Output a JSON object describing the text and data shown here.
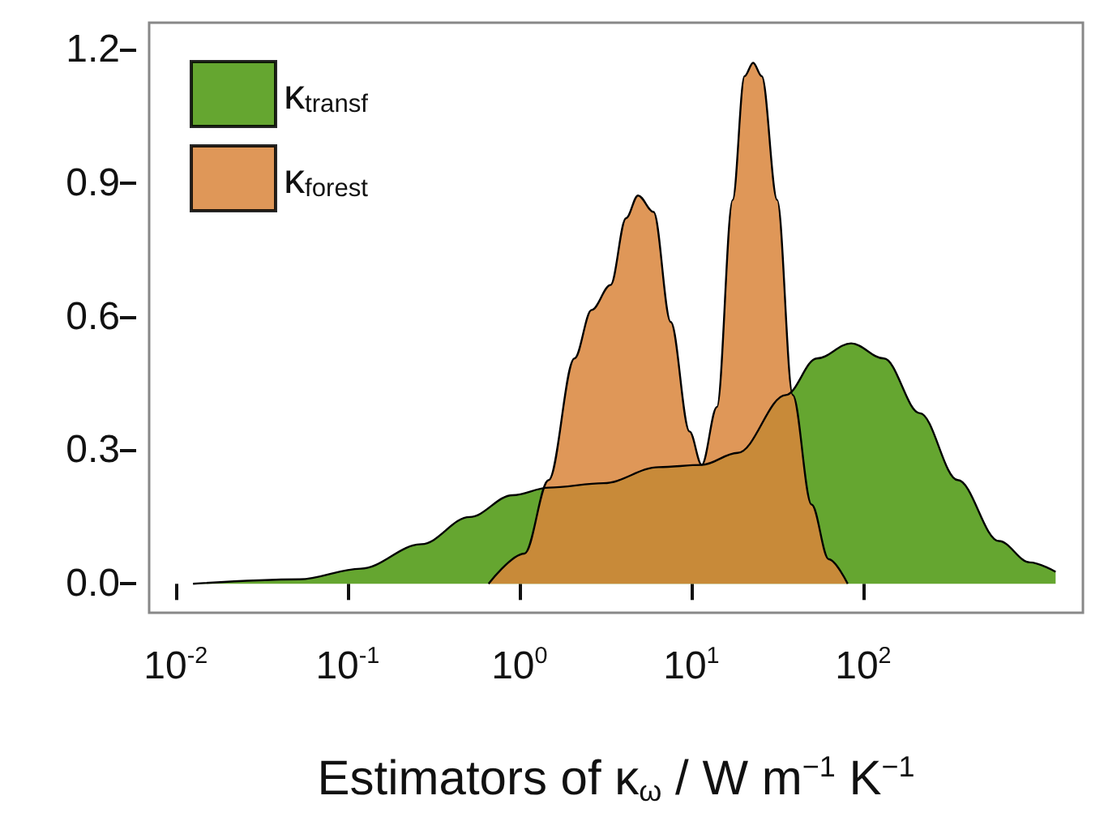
{
  "chart_data": {
    "type": "area",
    "xlabel": "Estimators of κ$_{ω}$ / W m$^{−1}$ K$^{−1}$",
    "log": "x",
    "xlim": [
      0.007,
      1900
    ],
    "xticks": [
      {
        "value": 0.01,
        "label": "10$^{-2}$"
      },
      {
        "value": 0.1,
        "label": "10$^{-1}$"
      },
      {
        "value": 1,
        "label": "10$^{0}$"
      },
      {
        "value": 10,
        "label": "10$^{1}$"
      },
      {
        "value": 100,
        "label": "10$^{2}$"
      }
    ],
    "ylim": [
      -0.065,
      1.26
    ],
    "yticks": [
      {
        "value": 0,
        "label": "0.0"
      },
      0.3,
      0.6,
      0.9,
      1.2
    ],
    "grid": false,
    "legend": "top left",
    "marker": "none",
    "series": [
      {
        "name": "κ$_{transf}$",
        "color": "#4a960c",
        "x": [
          0.0126,
          0.0525,
          0.119,
          0.269,
          0.513,
          0.912,
          1.48,
          3.09,
          6.46,
          11.5,
          18.6,
          35.5,
          53.7,
          85.1,
          132,
          214,
          355,
          617,
          933,
          1318
        ],
        "values": [
          0,
          0.01,
          0.034,
          0.089,
          0.15,
          0.199,
          0.216,
          0.226,
          0.262,
          0.267,
          0.294,
          0.424,
          0.506,
          0.54,
          0.506,
          0.383,
          0.233,
          0.096,
          0.048,
          0.027
        ]
      },
      {
        "name": "κ$_{forest}$",
        "color": "#d9853b",
        "x": [
          0.661,
          1.07,
          1.48,
          2.09,
          2.63,
          3.39,
          4.17,
          4.9,
          6.03,
          7.59,
          9.77,
          11.5,
          14.1,
          17.4,
          20.4,
          22.9,
          25.7,
          31.6,
          38.9,
          50.1,
          63.1,
          81.3
        ],
        "values": [
          0,
          0.068,
          0.233,
          0.506,
          0.615,
          0.671,
          0.821,
          0.872,
          0.835,
          0.588,
          0.342,
          0.267,
          0.397,
          0.862,
          1.14,
          1.17,
          1.14,
          0.862,
          0.424,
          0.178,
          0.055,
          0
        ]
      }
    ]
  }
}
